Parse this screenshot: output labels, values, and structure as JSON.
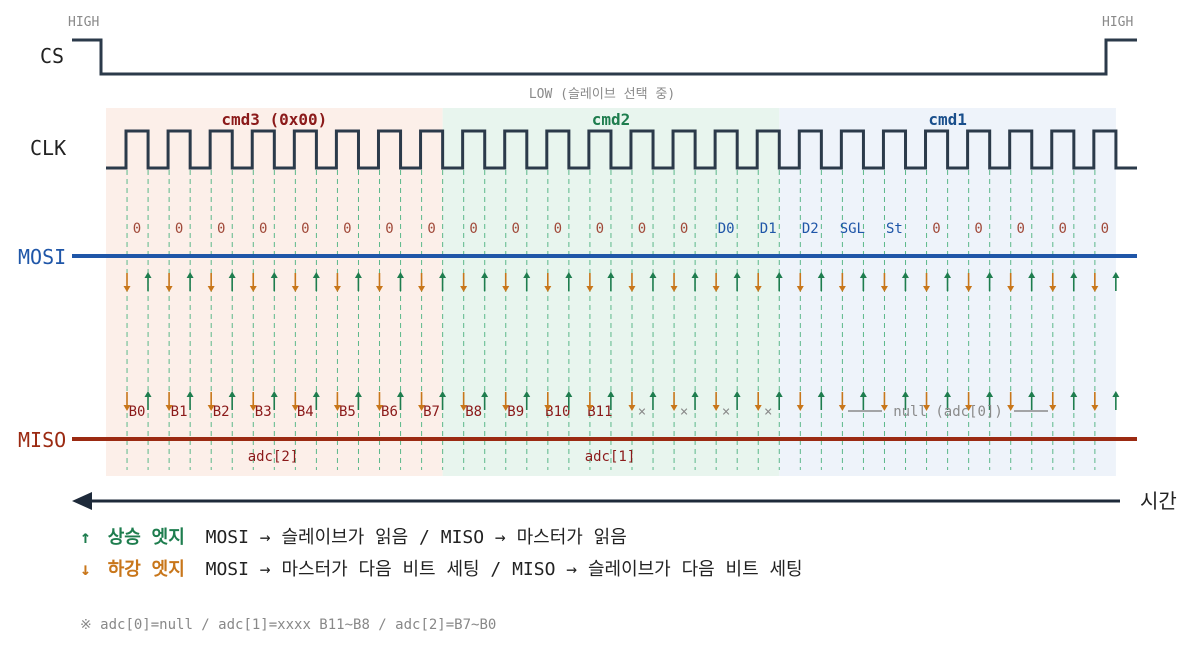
{
  "signals": {
    "cs": "CS",
    "clk": "CLK",
    "mosi": "MOSI",
    "miso": "MISO"
  },
  "cs": {
    "high_left": "HIGH",
    "high_right": "HIGH",
    "low": "LOW (슬레이브 선택 중)"
  },
  "phases": [
    {
      "label": "cmd3 (0x00)",
      "fill": "#fcefe9",
      "color": "#8b1a1a"
    },
    {
      "label": "cmd2",
      "fill": "#e8f5ee",
      "color": "#1e7d4e"
    },
    {
      "label": "cmd1",
      "fill": "#eef3fa",
      "color": "#1a4f8c"
    }
  ],
  "mosi_bits": [
    "0",
    "0",
    "0",
    "0",
    "0",
    "0",
    "0",
    "0",
    "0",
    "0",
    "0",
    "0",
    "0",
    "0",
    "D0",
    "D1",
    "D2",
    "SGL",
    "St",
    "0",
    "0",
    "0",
    "0",
    "0"
  ],
  "miso_bits": [
    "B0",
    "B1",
    "B2",
    "B3",
    "B4",
    "B5",
    "B6",
    "B7",
    "B8",
    "B9",
    "B10",
    "B11",
    "×",
    "×",
    "×",
    "×"
  ],
  "miso_null_label": "null (adc[0])",
  "adc_labels": [
    "adc[2]",
    "adc[1]"
  ],
  "time_label": "시간",
  "colors": {
    "mosi": "#1f56a8",
    "miso": "#9b2a12",
    "rising": "#1e7d4e",
    "falling": "#c8761a",
    "grid": "#5cb88a",
    "wave": "#2b3a4a"
  },
  "legend": {
    "rise_arrow": "↑",
    "rise_key": "상승 엣지",
    "rise_text": "MOSI → 슬레이브가 읽음 / MISO → 마스터가 읽음",
    "fall_arrow": "↓",
    "fall_key": "하강 엣지",
    "fall_text": "MOSI → 마스터가 다음 비트 세팅 / MISO → 슬레이브가 다음 비트 세팅"
  },
  "note": "※ adc[0]=null / adc[1]=xxxx B11~B8 / adc[2]=B7~B0"
}
